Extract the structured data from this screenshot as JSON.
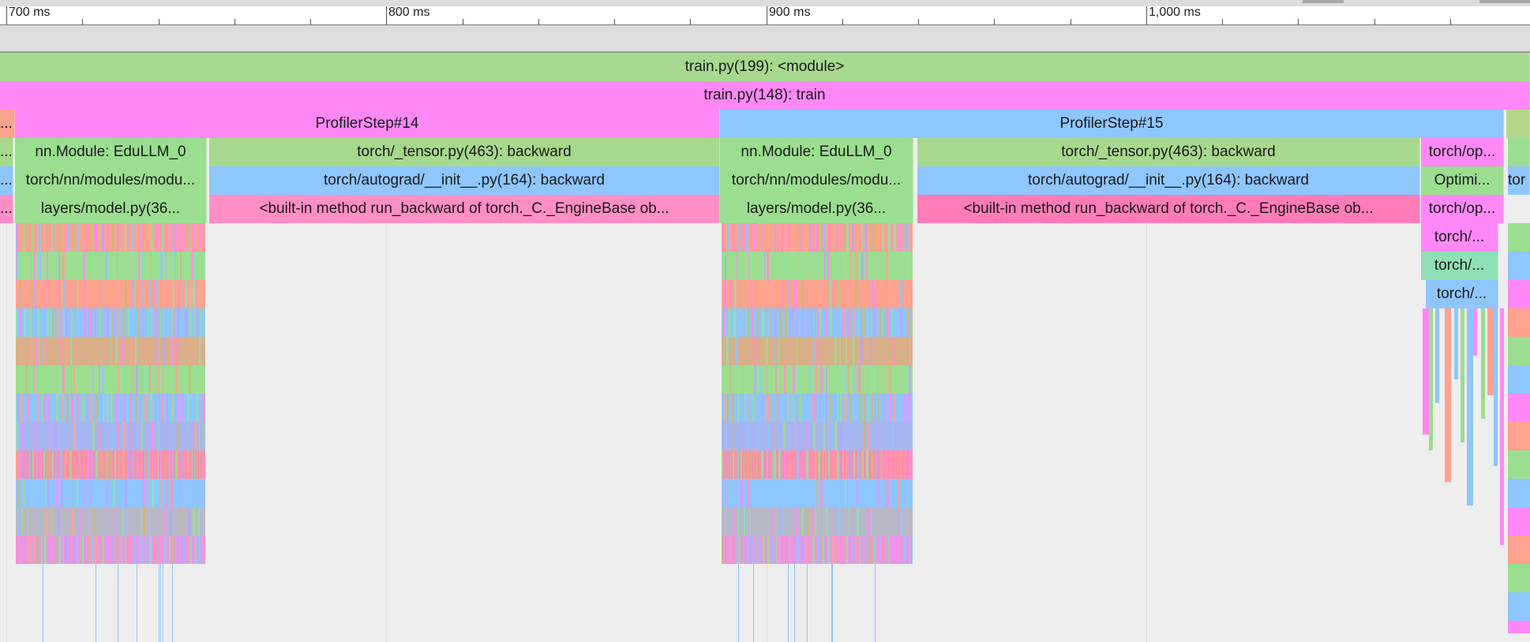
{
  "ruler": {
    "ticks": [
      {
        "label": "700 ms"
      },
      {
        "label": "800 ms"
      },
      {
        "label": "900 ms"
      },
      {
        "label": "1,000 ms"
      }
    ]
  },
  "colors": {
    "green": "#a6d98d",
    "pink": "#ff88f6",
    "blue": "#8ec6ff",
    "salmon": "#ffa290",
    "rose": "#ff8ec4",
    "mint": "#8fe0b4",
    "lightgreen": "#9bde90",
    "background": "#eeeeee"
  },
  "flame": {
    "root": "train.py(199): <module>",
    "train": "train.py(148): train",
    "step_prev": "...",
    "step14": "ProfilerStep#14",
    "step15": "ProfilerStep#15",
    "s14_module": "nn.Module: EduLLM_0",
    "s14_modu": "torch/nn/modules/modu...",
    "s14_layers": "layers/model.py(36...",
    "s14_backward": "torch/_tensor.py(463): backward",
    "s14_autograd": "torch/autograd/__init__.py(164): backward",
    "s14_engine": "<built-in method run_backward of torch._C._EngineBase ob...",
    "s15_module": "nn.Module: EduLLM_0",
    "s15_modu": "torch/nn/modules/modu...",
    "s15_layers": "layers/model.py(36...",
    "s15_backward": "torch/_tensor.py(463): backward",
    "s15_autograd": "torch/autograd/__init__.py(164): backward",
    "s15_engine": "<built-in method run_backward of torch._C._EngineBase ob...",
    "opt1": "torch/op...",
    "opt2": "Optimi...",
    "opt3": "torch/op...",
    "opt4": "torch/...",
    "opt5": "torch/...",
    "opt6": "torch/...",
    "right_cut": "tor",
    "left_cut": "..."
  }
}
